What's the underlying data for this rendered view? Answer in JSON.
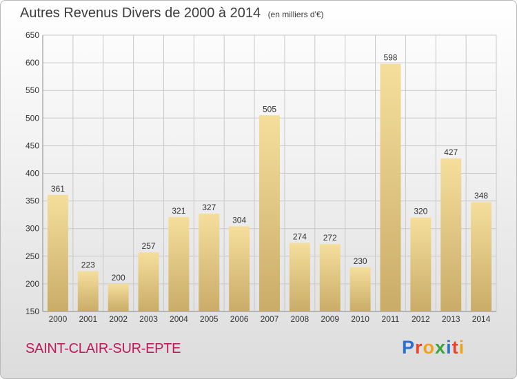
{
  "title": "Autres Revenus Divers de 2000 à 2014",
  "unit_note": "(en milliers d'€)",
  "commune": "SAINT-CLAIR-SUR-EPTE",
  "logo": {
    "letters": [
      "P",
      "r",
      "o",
      "x",
      "i",
      "t",
      "i"
    ],
    "colors": [
      "#2a6fcf",
      "#e8442a",
      "#f0a21b",
      "#3aa53a",
      "#2a6fcf",
      "#e8442a",
      "#f0a21b"
    ]
  },
  "colors": {
    "bar_light": "#f5de9c",
    "bar_dark": "#c9ac68",
    "grid": "#c8c8c8",
    "axis_text": "#333333",
    "commune_text": "#c2185b"
  },
  "chart_data": {
    "type": "bar",
    "categories": [
      "2000",
      "2001",
      "2002",
      "2003",
      "2004",
      "2005",
      "2006",
      "2007",
      "2008",
      "2009",
      "2010",
      "2011",
      "2012",
      "2013",
      "2014"
    ],
    "values": [
      361,
      223,
      200,
      257,
      321,
      327,
      304,
      505,
      274,
      272,
      230,
      598,
      320,
      427,
      348
    ],
    "data_labels": [
      "361",
      "223",
      "200",
      "257",
      "321",
      "327",
      "304",
      "505",
      "274",
      "272",
      "230",
      "598",
      "320",
      "427",
      "348"
    ],
    "ylim": [
      150,
      650
    ],
    "yticks": [
      150,
      200,
      250,
      300,
      350,
      400,
      450,
      500,
      550,
      600,
      650
    ],
    "grid": true,
    "legend": "none",
    "xlabel": "",
    "ylabel": ""
  }
}
